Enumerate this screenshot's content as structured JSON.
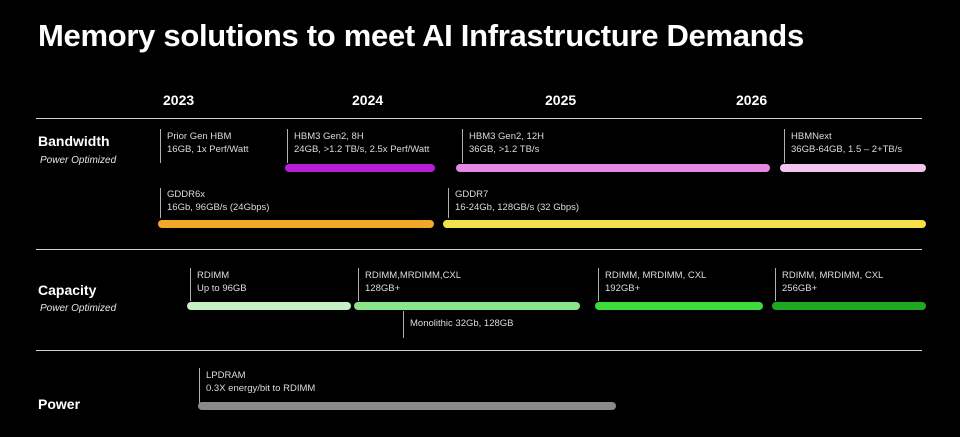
{
  "title": "Memory solutions to meet AI Infrastructure Demands",
  "years": [
    "2023",
    "2024",
    "2025",
    "2026"
  ],
  "rows": {
    "bandwidth": {
      "title": "Bandwidth",
      "subtitle": "Power Optimized"
    },
    "capacity": {
      "title": "Capacity",
      "subtitle": "Power Optimized"
    },
    "power": {
      "title": "Power"
    }
  },
  "items": {
    "prior_hbm": {
      "line1": "Prior Gen HBM",
      "line2": "16GB, 1x Perf/Watt"
    },
    "hbm3_8h": {
      "line1": "HBM3 Gen2, 8H",
      "line2": "24GB, >1.2 TB/s, 2.5x Perf/Watt",
      "color": "#b71fd6"
    },
    "hbm3_12h": {
      "line1": "HBM3 Gen2, 12H",
      "line2": "36GB, >1.2 TB/s",
      "color": "#e48ae6"
    },
    "hbmnext": {
      "line1": "HBMNext",
      "line2": "36GB-64GB, 1.5 – 2+TB/s",
      "color": "#f4c4ef"
    },
    "gddr6x": {
      "line1": "GDDR6x",
      "line2": "16Gb, 96GB/s (24Gbps)",
      "color": "#f3a82c"
    },
    "gddr7": {
      "line1": "GDDR7",
      "line2": "16-24Gb, 128GB/s (32 Gbps)",
      "color": "#f4e04a"
    },
    "rdimm_96": {
      "line1": "RDIMM",
      "line2": "Up to 96GB",
      "color": "#c5f1c5"
    },
    "rdimm_128": {
      "line1": "RDIMM,MRDIMM,CXL",
      "line2": "128GB+",
      "color": "#8ae48a"
    },
    "monolithic": {
      "line1": "Monolithic 32Gb, 128GB"
    },
    "rdimm_192": {
      "line1": "RDIMM, MRDIMM, CXL",
      "line2": "192GB+",
      "color": "#3cdc3c"
    },
    "rdimm_256": {
      "line1": "RDIMM, MRDIMM, CXL",
      "line2": "256GB+",
      "color": "#1fa81f"
    },
    "lpdram": {
      "line1": "LPDRAM",
      "line2": "0.3X energy/bit to RDIMM",
      "color": "#8a8a8a"
    }
  }
}
